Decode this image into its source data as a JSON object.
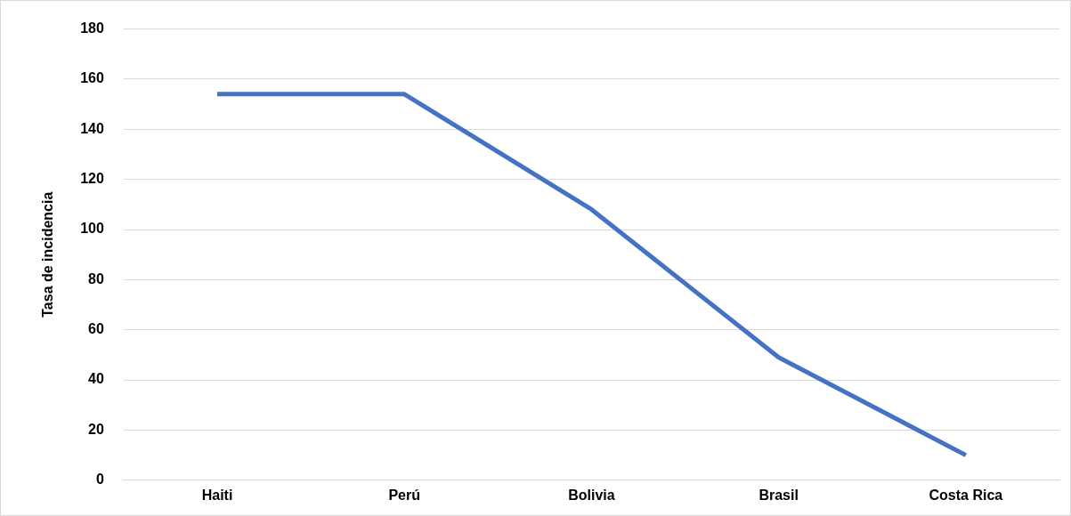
{
  "chart_data": {
    "type": "line",
    "ylabel": "Tasa de incidencia",
    "categories": [
      "Haiti",
      "Perú",
      "Bolivia",
      "Brasil",
      "Costa Rica"
    ],
    "series": [
      {
        "color": "#4472c4",
        "values": [
          154,
          154,
          108,
          49,
          10
        ]
      }
    ],
    "ylim": [
      0,
      180
    ],
    "yticks": [
      0,
      20,
      40,
      60,
      80,
      100,
      120,
      140,
      160,
      180
    ],
    "grid": "y",
    "legend": false,
    "marker": "none",
    "line_style": "solid"
  }
}
